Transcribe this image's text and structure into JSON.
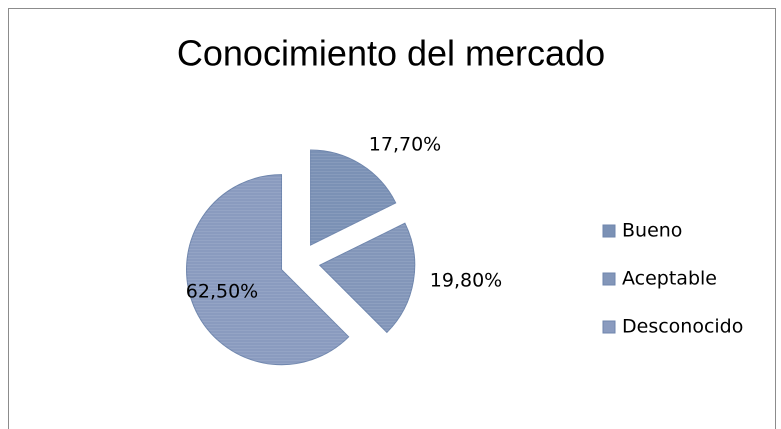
{
  "chart_data": {
    "type": "pie",
    "title": "Conocimiento del mercado",
    "categories": [
      "Bueno",
      "Aceptable",
      "Desconocido"
    ],
    "values": [
      17.7,
      19.8,
      62.5
    ],
    "value_labels": [
      "17,70%",
      "19,80%",
      "62,50%"
    ],
    "colors": [
      "#7b91b5",
      "#8396b9",
      "#8a9bbf"
    ],
    "legend": "right"
  }
}
